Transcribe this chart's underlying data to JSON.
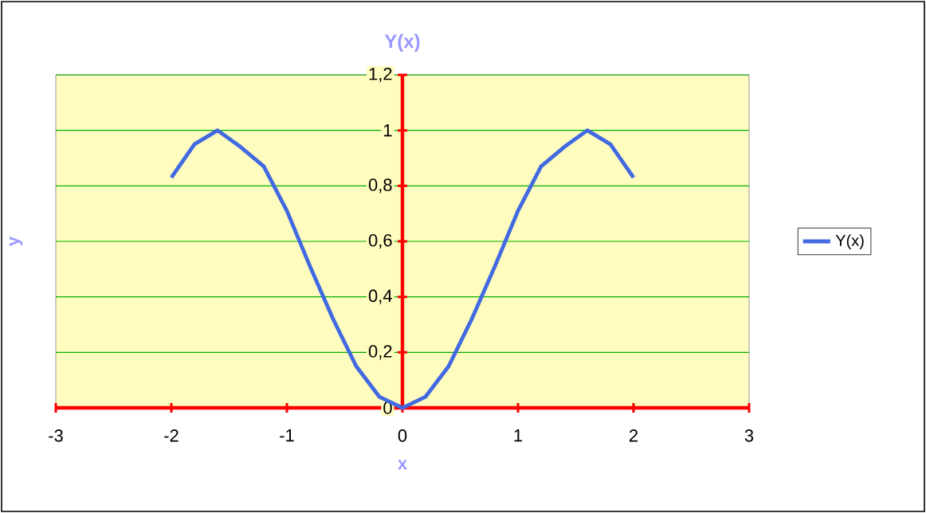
{
  "chart_data": {
    "type": "line",
    "title": "Y(x)",
    "xlabel": "x",
    "ylabel": "y",
    "x": [
      -2,
      -1.8,
      -1.6,
      -1.4,
      -1.2,
      -1.0,
      -0.8,
      -0.6,
      -0.4,
      -0.2,
      0,
      0.2,
      0.4,
      0.6,
      0.8,
      1.0,
      1.2,
      1.4,
      1.6,
      1.8,
      2
    ],
    "series": [
      {
        "name": "Y(x)",
        "color": "#4169e1",
        "values": [
          0.83,
          0.95,
          1.0,
          0.94,
          0.87,
          0.71,
          0.51,
          0.32,
          0.15,
          0.04,
          0,
          0.04,
          0.15,
          0.32,
          0.51,
          0.71,
          0.87,
          0.94,
          1.0,
          0.95,
          0.83
        ]
      }
    ],
    "xlim": [
      -3,
      3
    ],
    "xticks": [
      -3,
      -2,
      -1,
      0,
      1,
      2,
      3
    ],
    "ylim": [
      0,
      1.2
    ],
    "yticks": [
      {
        "value": 0,
        "label": "0"
      },
      {
        "value": 0.2,
        "label": "0,2"
      },
      {
        "value": 0.4,
        "label": "0,4"
      },
      {
        "value": 0.6,
        "label": "0,6"
      },
      {
        "value": 0.8,
        "label": "0,8"
      },
      {
        "value": 1,
        "label": "1"
      },
      {
        "value": 1.2,
        "label": "1,2"
      }
    ],
    "grid": "y",
    "legend": "right",
    "marker": "none",
    "line_style": "solid"
  }
}
